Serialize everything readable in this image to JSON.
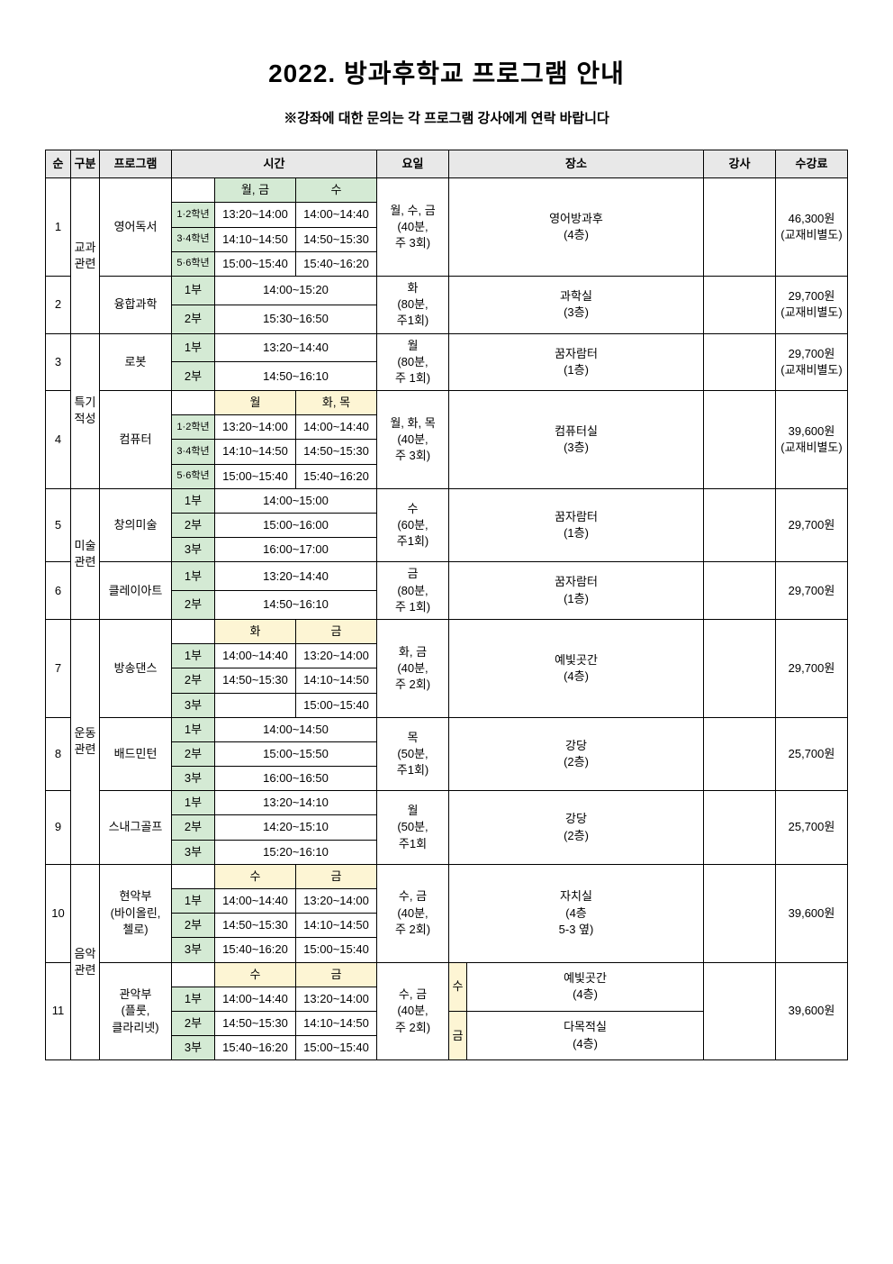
{
  "title": "2022. 방과후학교 프로그램 안내",
  "subtitle": "※강좌에 대한 문의는 각 프로그램 강사에게 연락 바랍니다",
  "headers": {
    "num": "순",
    "category": "구분",
    "program": "프로그램",
    "time": "시간",
    "day": "요일",
    "place": "장소",
    "teacher": "강사",
    "fee": "수강료"
  },
  "colors": {
    "header_bg": "#e8e8e8",
    "green_bg": "#d4ead4",
    "yellow_bg": "#fdf5d4",
    "border": "#000000",
    "text": "#000000",
    "page_bg": "#ffffff"
  },
  "grade_labels": {
    "g12": "1·2학년",
    "g34": "3·4학년",
    "g56": "5·6학년",
    "p1": "1부",
    "p2": "2부",
    "p3": "3부"
  },
  "day_headers": {
    "mon_fri": "월, 금",
    "wed": "수",
    "mon": "월",
    "tue_thu": "화, 목",
    "tue": "화",
    "fri": "금",
    "su": "수"
  },
  "rows": [
    {
      "num": "1",
      "category": "교과\n관련",
      "program": "영어독서",
      "schedule_header": [
        "월, 금",
        "수"
      ],
      "schedule": [
        {
          "grade": "1·2학년",
          "t1": "13:20~14:00",
          "t2": "14:00~14:40"
        },
        {
          "grade": "3·4학년",
          "t1": "14:10~14:50",
          "t2": "14:50~15:30"
        },
        {
          "grade": "5·6학년",
          "t1": "15:00~15:40",
          "t2": "15:40~16:20"
        }
      ],
      "days": "월, 수, 금\n(40분,\n주 3회)",
      "place": "영어방과후\n(4층)",
      "fee": "46,300원\n(교재비별도)"
    },
    {
      "num": "2",
      "program": "융합과학",
      "schedule": [
        {
          "grade": "1부",
          "t": "14:00~15:20"
        },
        {
          "grade": "2부",
          "t": "15:30~16:50"
        }
      ],
      "days": "화\n(80분,\n주1회)",
      "place": "과학실\n(3층)",
      "fee": "29,700원\n(교재비별도)"
    },
    {
      "num": "3",
      "category": "특기\n적성",
      "program": "로봇",
      "schedule": [
        {
          "grade": "1부",
          "t": "13:20~14:40"
        },
        {
          "grade": "2부",
          "t": "14:50~16:10"
        }
      ],
      "days": "월\n(80분,\n주 1회)",
      "place": "꿈자람터\n(1층)",
      "fee": "29,700원\n(교재비별도)"
    },
    {
      "num": "4",
      "program": "컴퓨터",
      "schedule_header": [
        "월",
        "화, 목"
      ],
      "schedule": [
        {
          "grade": "1·2학년",
          "t1": "13:20~14:00",
          "t2": "14:00~14:40"
        },
        {
          "grade": "3·4학년",
          "t1": "14:10~14:50",
          "t2": "14:50~15:30"
        },
        {
          "grade": "5·6학년",
          "t1": "15:00~15:40",
          "t2": "15:40~16:20"
        }
      ],
      "days": "월, 화, 목\n(40분,\n주 3회)",
      "place": "컴퓨터실\n(3층)",
      "fee": "39,600원\n(교재비별도)"
    },
    {
      "num": "5",
      "category": "미술\n관련",
      "program": "창의미술",
      "schedule": [
        {
          "grade": "1부",
          "t": "14:00~15:00"
        },
        {
          "grade": "2부",
          "t": "15:00~16:00"
        },
        {
          "grade": "3부",
          "t": "16:00~17:00"
        }
      ],
      "days": "수\n(60분,\n주1회)",
      "place": "꿈자람터\n(1층)",
      "fee": "29,700원"
    },
    {
      "num": "6",
      "program": "클레이아트",
      "schedule": [
        {
          "grade": "1부",
          "t": "13:20~14:40"
        },
        {
          "grade": "2부",
          "t": "14:50~16:10"
        }
      ],
      "days": "금\n(80분,\n주 1회)",
      "place": "꿈자람터\n(1층)",
      "fee": "29,700원"
    },
    {
      "num": "7",
      "category": "운동\n관련",
      "program": "방송댄스",
      "schedule_header": [
        "화",
        "금"
      ],
      "schedule": [
        {
          "grade": "1부",
          "t1": "14:00~14:40",
          "t2": "13:20~14:00"
        },
        {
          "grade": "2부",
          "t1": "14:50~15:30",
          "t2": "14:10~14:50"
        },
        {
          "grade": "3부",
          "t1": "",
          "t2": "15:00~15:40"
        }
      ],
      "days": "화, 금\n(40분,\n주 2회)",
      "place": "예빛곳간\n(4층)",
      "fee": "29,700원"
    },
    {
      "num": "8",
      "program": "배드민턴",
      "schedule": [
        {
          "grade": "1부",
          "t": "14:00~14:50"
        },
        {
          "grade": "2부",
          "t": "15:00~15:50"
        },
        {
          "grade": "3부",
          "t": "16:00~16:50"
        }
      ],
      "days": "목\n(50분,\n주1회)",
      "place": "강당\n(2층)",
      "fee": "25,700원"
    },
    {
      "num": "9",
      "program": "스내그골프",
      "schedule": [
        {
          "grade": "1부",
          "t": "13:20~14:10"
        },
        {
          "grade": "2부",
          "t": "14:20~15:10"
        },
        {
          "grade": "3부",
          "t": "15:20~16:10"
        }
      ],
      "days": "월\n(50분,\n주1회",
      "place": "강당\n(2층)",
      "fee": "25,700원"
    },
    {
      "num": "10",
      "category": "음악\n관련",
      "program": "현악부\n(바이올린,\n첼로)",
      "schedule_header": [
        "수",
        "금"
      ],
      "schedule": [
        {
          "grade": "1부",
          "t1": "14:00~14:40",
          "t2": "13:20~14:00"
        },
        {
          "grade": "2부",
          "t1": "14:50~15:30",
          "t2": "14:10~14:50"
        },
        {
          "grade": "3부",
          "t1": "15:40~16:20",
          "t2": "15:00~15:40"
        }
      ],
      "days": "수, 금\n(40분,\n주 2회)",
      "place": "자치실\n(4층\n5-3 옆)",
      "fee": "39,600원"
    },
    {
      "num": "11",
      "program": "관악부\n(플룻,\n클라리넷)",
      "schedule_header": [
        "수",
        "금"
      ],
      "schedule": [
        {
          "grade": "1부",
          "t1": "14:00~14:40",
          "t2": "13:20~14:00"
        },
        {
          "grade": "2부",
          "t1": "14:50~15:30",
          "t2": "14:10~14:50"
        },
        {
          "grade": "3부",
          "t1": "15:40~16:20",
          "t2": "15:00~15:40"
        }
      ],
      "days": "수, 금\n(40분,\n주 2회)",
      "place_wed_label": "수",
      "place_wed": "예빛곳간\n(4층)",
      "place_fri_label": "금",
      "place_fri": "다목적실\n(4층)",
      "fee": "39,600원"
    }
  ]
}
